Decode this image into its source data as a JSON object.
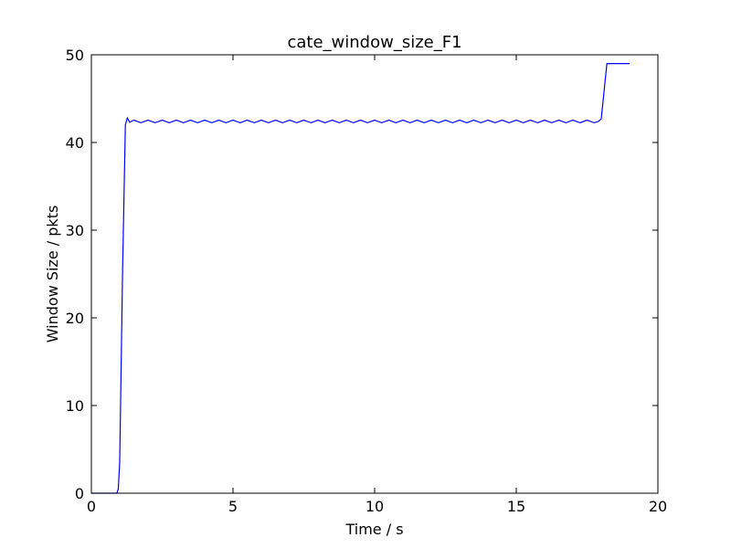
{
  "chart_data": {
    "type": "line",
    "title": "cate_window_size_F1",
    "xlabel": "Time / s",
    "ylabel": "Window Size / pkts",
    "xlim": [
      0,
      20
    ],
    "xticks": [
      0,
      5,
      10,
      15,
      20
    ],
    "ylim": [
      0,
      50
    ],
    "yticks": [
      0,
      10,
      20,
      30,
      40,
      50
    ],
    "grid": false,
    "x": [
      0,
      0.9,
      0.95,
      1.0,
      1.1,
      1.2,
      1.27,
      1.35,
      1.5,
      1.75,
      2,
      2.25,
      2.5,
      2.75,
      3,
      3.25,
      3.5,
      3.75,
      4,
      4.25,
      4.5,
      4.75,
      5,
      5.25,
      5.5,
      5.75,
      6,
      6.25,
      6.5,
      6.75,
      7,
      7.25,
      7.5,
      7.75,
      8,
      8.25,
      8.5,
      8.75,
      9,
      9.25,
      9.5,
      9.75,
      10,
      10.25,
      10.5,
      10.75,
      11,
      11.25,
      11.5,
      11.75,
      12,
      12.25,
      12.5,
      12.75,
      13,
      13.25,
      13.5,
      13.75,
      14,
      14.25,
      14.5,
      14.75,
      15,
      15.25,
      15.5,
      15.75,
      16,
      16.25,
      16.5,
      16.75,
      17,
      17.25,
      17.5,
      17.75,
      17.9,
      18.0,
      18.2,
      19.0
    ],
    "series": [
      {
        "color": "#0000ff",
        "values": [
          0,
          0,
          0.5,
          3.5,
          25,
          42,
          42.8,
          42.3,
          42.55,
          42.25,
          42.55,
          42.25,
          42.55,
          42.25,
          42.55,
          42.25,
          42.55,
          42.25,
          42.55,
          42.25,
          42.55,
          42.25,
          42.55,
          42.25,
          42.55,
          42.25,
          42.55,
          42.25,
          42.55,
          42.25,
          42.55,
          42.25,
          42.55,
          42.25,
          42.55,
          42.25,
          42.55,
          42.25,
          42.55,
          42.25,
          42.55,
          42.25,
          42.55,
          42.25,
          42.55,
          42.25,
          42.55,
          42.25,
          42.55,
          42.25,
          42.55,
          42.25,
          42.55,
          42.25,
          42.55,
          42.25,
          42.55,
          42.25,
          42.55,
          42.25,
          42.55,
          42.25,
          42.55,
          42.25,
          42.55,
          42.25,
          42.55,
          42.25,
          42.55,
          42.25,
          42.55,
          42.25,
          42.55,
          42.25,
          42.4,
          42.7,
          49,
          49
        ]
      }
    ]
  }
}
